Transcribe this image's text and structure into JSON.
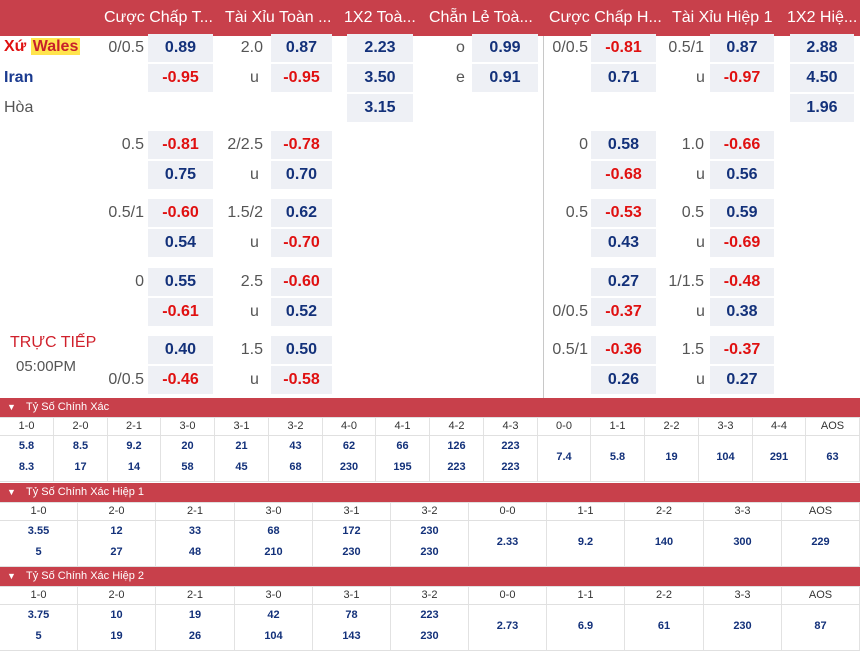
{
  "header": [
    "Cược Chấp T...",
    "Tài Xỉu Toàn ...",
    "1X2 Toà...",
    "Chẵn Lẻ Toà...",
    "Cược Chấp H...",
    "Tài Xỉu Hiệp 1",
    "1X2 Hiệ..."
  ],
  "teams": {
    "home_prefix": "Xứ ",
    "home_highlight": "Wales",
    "away": "Iran",
    "draw": "Hòa"
  },
  "status": {
    "live": "TRỰC TIẾP",
    "time": "05:00PM"
  },
  "main_rows": [
    {
      "hcap_line": "0/0.5",
      "hcap_home": "0.89",
      "hcap_away": "-0.95",
      "ou_line": "2.0",
      "ou_u": "u",
      "ou_over": "0.87",
      "ou_under": "-0.95",
      "x12_home": "2.23",
      "x12_away": "3.50",
      "x12_draw": "3.15",
      "oe_o": "o",
      "oe_e": "e",
      "oe_odd": "0.99",
      "oe_even": "0.91",
      "h1_line_top": "0/0.5",
      "h1_home": "-0.81",
      "h1_away": "0.71",
      "h1ou_line": "0.5/1",
      "h1ou_u": "u",
      "h1ou_over": "0.87",
      "h1ou_under": "-0.97",
      "h1x2_home": "2.88",
      "h1x2_away": "4.50",
      "h1x2_draw": "1.96"
    }
  ],
  "extra_rows": [
    {
      "hcap_line": "0.5",
      "hcap_home": "-0.81",
      "hcap_away": "0.75",
      "ou_line": "2/2.5",
      "ou_u": "u",
      "ou_over": "-0.78",
      "ou_under": "0.70",
      "h1_line_top": "0",
      "h1_line_bot": "",
      "h1_home": "0.58",
      "h1_away": "-0.68",
      "h1ou_line": "1.0",
      "h1ou_u": "u",
      "h1ou_over": "-0.66",
      "h1ou_under": "0.56"
    },
    {
      "hcap_line": "0.5/1",
      "hcap_home": "-0.60",
      "hcap_away": "0.54",
      "ou_line": "1.5/2",
      "ou_u": "u",
      "ou_over": "0.62",
      "ou_under": "-0.70",
      "h1_line_top": "0.5",
      "h1_line_bot": "",
      "h1_home": "-0.53",
      "h1_away": "0.43",
      "h1ou_line": "0.5",
      "h1ou_u": "u",
      "h1ou_over": "0.59",
      "h1ou_under": "-0.69"
    },
    {
      "hcap_line": "0",
      "hcap_home": "0.55",
      "hcap_away": "-0.61",
      "ou_line": "2.5",
      "ou_u": "u",
      "ou_over": "-0.60",
      "ou_under": "0.52",
      "h1_line_top": "",
      "h1_line_bot": "0/0.5",
      "h1_home": "0.27",
      "h1_away": "-0.37",
      "h1ou_line": "1/1.5",
      "h1ou_u": "u",
      "h1ou_over": "-0.48",
      "h1ou_under": "0.38"
    },
    {
      "hcap_line": "",
      "hcap_line_bot": "0/0.5",
      "hcap_home": "0.40",
      "hcap_away": "-0.46",
      "ou_line": "1.5",
      "ou_u": "u",
      "ou_over": "0.50",
      "ou_under": "-0.58",
      "h1_line_top": "0.5/1",
      "h1_line_bot": "",
      "h1_home": "-0.36",
      "h1_away": "0.26",
      "h1ou_line": "1.5",
      "h1ou_u": "u",
      "h1ou_over": "-0.37",
      "h1ou_under": "0.27"
    }
  ],
  "sections": [
    {
      "title": "Tỷ Số Chính Xác",
      "scores": [
        "1-0",
        "2-0",
        "2-1",
        "3-0",
        "3-1",
        "3-2",
        "4-0",
        "4-1",
        "4-2",
        "4-3",
        "0-0",
        "1-1",
        "2-2",
        "3-3",
        "4-4",
        "AOS"
      ],
      "home": [
        "5.8",
        "8.5",
        "9.2",
        "20",
        "21",
        "43",
        "62",
        "66",
        "126",
        "223"
      ],
      "away": [
        "8.3",
        "17",
        "14",
        "58",
        "45",
        "68",
        "230",
        "195",
        "223",
        "223"
      ],
      "single": [
        "7.4",
        "5.8",
        "19",
        "104",
        "291",
        "63"
      ]
    },
    {
      "title": "Tỷ Số Chính Xác Hiệp 1",
      "scores": [
        "1-0",
        "2-0",
        "2-1",
        "3-0",
        "3-1",
        "3-2",
        "0-0",
        "1-1",
        "2-2",
        "3-3",
        "AOS"
      ],
      "home": [
        "3.55",
        "12",
        "33",
        "68",
        "172",
        "230"
      ],
      "away": [
        "5",
        "27",
        "48",
        "210",
        "230",
        "230"
      ],
      "single": [
        "2.33",
        "9.2",
        "140",
        "300",
        "229"
      ]
    },
    {
      "title": "Tỷ Số Chính Xác Hiệp 2",
      "scores": [
        "1-0",
        "2-0",
        "2-1",
        "3-0",
        "3-1",
        "3-2",
        "0-0",
        "1-1",
        "2-2",
        "3-3",
        "AOS"
      ],
      "home": [
        "3.75",
        "10",
        "19",
        "42",
        "78",
        "223"
      ],
      "away": [
        "5",
        "19",
        "26",
        "104",
        "143",
        "230"
      ],
      "single": [
        "2.73",
        "6.9",
        "61",
        "230",
        "87"
      ]
    }
  ]
}
